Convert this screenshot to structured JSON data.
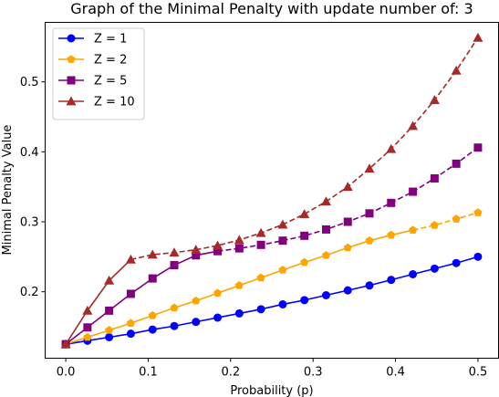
{
  "chart_data": {
    "type": "line",
    "title": "Graph of the Minimal Penalty with update number of: 3",
    "xlabel": "Probability (p)",
    "ylabel": "Minimal Penalty Value",
    "xlim": [
      -0.025,
      0.525
    ],
    "ylim": [
      0.105,
      0.585
    ],
    "xticks": [
      0.0,
      0.1,
      0.2,
      0.3,
      0.4,
      0.5
    ],
    "xtick_labels": [
      "0.0",
      "0.1",
      "0.2",
      "0.3",
      "0.4",
      "0.5"
    ],
    "yticks": [
      0.2,
      0.3,
      0.4,
      0.5
    ],
    "ytick_labels": [
      "0.2",
      "0.3",
      "0.4",
      "0.5"
    ],
    "legend_position": "top-left",
    "grid": false,
    "x": [
      0.0,
      0.0263,
      0.0526,
      0.0789,
      0.1053,
      0.1316,
      0.1579,
      0.1842,
      0.2105,
      0.2368,
      0.2632,
      0.2895,
      0.3158,
      0.3421,
      0.3684,
      0.3947,
      0.4211,
      0.4474,
      0.4737,
      0.5
    ],
    "series": [
      {
        "name": "Z = 1",
        "color": "#0000ff",
        "marker": "circle",
        "values": [
          0.125,
          0.13,
          0.135,
          0.14,
          0.146,
          0.151,
          0.157,
          0.163,
          0.169,
          0.175,
          0.182,
          0.188,
          0.195,
          0.202,
          0.209,
          0.217,
          0.225,
          0.233,
          0.241,
          0.25
        ],
        "solid_until_index": 19
      },
      {
        "name": "Z = 2",
        "color": "#ffa500",
        "marker": "pentagon",
        "values": [
          0.125,
          0.135,
          0.145,
          0.155,
          0.166,
          0.177,
          0.187,
          0.198,
          0.209,
          0.22,
          0.231,
          0.242,
          0.252,
          0.263,
          0.273,
          0.281,
          0.288,
          0.295,
          0.304,
          0.313
        ],
        "solid_until_index": 16
      },
      {
        "name": "Z = 5",
        "color": "#800080",
        "marker": "square",
        "values": [
          0.125,
          0.149,
          0.173,
          0.197,
          0.219,
          0.238,
          0.252,
          0.258,
          0.262,
          0.267,
          0.273,
          0.28,
          0.289,
          0.3,
          0.312,
          0.327,
          0.343,
          0.362,
          0.383,
          0.406
        ],
        "solid_until_index": 7
      },
      {
        "name": "Z = 10",
        "color": "#a52a2a",
        "marker": "triangle",
        "values": [
          0.125,
          0.173,
          0.216,
          0.246,
          0.253,
          0.256,
          0.26,
          0.266,
          0.274,
          0.284,
          0.296,
          0.311,
          0.329,
          0.35,
          0.376,
          0.404,
          0.437,
          0.474,
          0.516,
          0.563
        ],
        "solid_until_index": 3
      }
    ]
  }
}
